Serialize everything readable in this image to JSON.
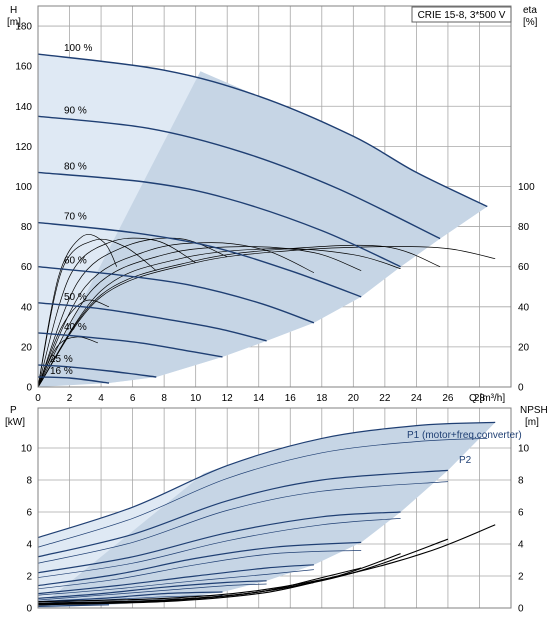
{
  "chart_data": [
    {
      "type": "line",
      "title": "CRIE 15-8, 3*500 V",
      "xlabel": "Q [m³/h]",
      "ylabel": "H [m]",
      "y2label": "eta [%]",
      "ylabel_parts": [
        "H",
        "[m]"
      ],
      "y2label_parts": [
        "eta",
        "[%]"
      ],
      "xlabel_text": "Q [m³/h]",
      "xlim": [
        0,
        30
      ],
      "ylim": [
        0,
        190
      ],
      "y2lim": [
        0,
        190
      ],
      "x_ticks": [
        0,
        2,
        4,
        6,
        8,
        10,
        12,
        14,
        16,
        18,
        20,
        22,
        24,
        26,
        28
      ],
      "y_ticks": [
        0,
        20,
        40,
        60,
        80,
        100,
        120,
        140,
        160,
        180
      ],
      "y2_ticks": [
        0,
        20,
        40,
        60,
        80,
        100
      ],
      "grid": true,
      "legend": "none",
      "head_curves": [
        {
          "label": "100 %",
          "x": [
            0,
            8,
            14,
            20,
            24,
            28.5
          ],
          "y": [
            166,
            158,
            145,
            125,
            107,
            90
          ]
        },
        {
          "label": "90 %",
          "x": [
            0,
            7,
            13,
            19,
            25.5
          ],
          "y": [
            135,
            129,
            117,
            99,
            74
          ]
        },
        {
          "label": "80 %",
          "x": [
            0,
            7,
            12,
            18,
            23
          ],
          "y": [
            107,
            102,
            94,
            78,
            60
          ]
        },
        {
          "label": "70 %",
          "x": [
            0,
            6,
            11,
            16,
            20.5
          ],
          "y": [
            82,
            77,
            70,
            58,
            45
          ]
        },
        {
          "label": "60 %",
          "x": [
            0,
            5,
            9.5,
            14,
            17.5
          ],
          "y": [
            60,
            56,
            51,
            42,
            32
          ]
        },
        {
          "label": "50 %",
          "x": [
            0,
            4,
            8,
            11.5,
            14.5
          ],
          "y": [
            42,
            39,
            34,
            29,
            23
          ]
        },
        {
          "label": "40 %",
          "x": [
            0,
            3,
            6.5,
            9.5,
            11.7
          ],
          "y": [
            27,
            25,
            22,
            18,
            15
          ]
        },
        {
          "label": "25 %",
          "x": [
            0,
            2,
            4.5,
            7.5
          ],
          "y": [
            11,
            10,
            8,
            5
          ]
        },
        {
          "label": "16 %",
          "x": [
            0,
            2,
            4.5
          ],
          "y": [
            5,
            4.5,
            2
          ]
        }
      ],
      "efficiency_curves": [
        {
          "x": [
            0,
            4,
            10,
            16,
            22,
            26,
            29
          ],
          "y": [
            0,
            45,
            62,
            68,
            70,
            69,
            64
          ]
        },
        {
          "x": [
            0,
            4,
            10,
            16,
            22,
            25.5
          ],
          "y": [
            0,
            46,
            63,
            69,
            70,
            60
          ]
        },
        {
          "x": [
            0,
            4,
            9,
            15,
            20,
            23
          ],
          "y": [
            0,
            48,
            64,
            69,
            66,
            59
          ]
        },
        {
          "x": [
            0,
            3.5,
            8,
            13,
            17.5,
            20.5
          ],
          "y": [
            0,
            49,
            66,
            70,
            67,
            58
          ]
        },
        {
          "x": [
            0,
            3,
            7,
            11,
            14.5,
            17.5
          ],
          "y": [
            0,
            50,
            68,
            72,
            68,
            57
          ]
        },
        {
          "x": [
            0,
            2.5,
            5.5,
            9,
            12
          ],
          "y": [
            0,
            52,
            70,
            74,
            65
          ]
        },
        {
          "x": [
            0,
            2,
            4.5,
            7.5,
            10
          ],
          "y": [
            0,
            55,
            72,
            73,
            62
          ]
        },
        {
          "x": [
            0,
            1.5,
            3.5,
            5.5,
            7.5
          ],
          "y": [
            0,
            58,
            73,
            70,
            58
          ]
        },
        {
          "x": [
            0,
            1.3,
            2.8,
            4.2,
            5
          ],
          "y": [
            0,
            55,
            75,
            72,
            60
          ]
        },
        {
          "x": [
            0,
            1.5,
            3,
            4.5
          ],
          "y": [
            0,
            30,
            43,
            40
          ]
        },
        {
          "x": [
            0,
            1.2,
            2.5,
            3.8
          ],
          "y": [
            0,
            20,
            25,
            22
          ]
        }
      ]
    },
    {
      "type": "line",
      "xlabel": "Q [m³/h]",
      "ylabel": "P [kW]",
      "y2label": "NPSH [m]",
      "ylabel_parts": [
        "P",
        "[kW]"
      ],
      "y2label_parts": [
        "NPSH",
        "[m]"
      ],
      "xlim": [
        0,
        30
      ],
      "ylim": [
        0,
        12.5
      ],
      "y2lim": [
        0,
        12.5
      ],
      "y_ticks": [
        0,
        2,
        4,
        6,
        8,
        10
      ],
      "y2_ticks": [
        0,
        2,
        4,
        6,
        8,
        10
      ],
      "grid": true,
      "annotations": [
        "P1 (motor+freq.converter)",
        "P2"
      ],
      "p1_curves": [
        {
          "x": [
            0,
            6,
            12,
            18,
            24,
            29
          ],
          "y": [
            4.4,
            6.3,
            8.9,
            10.6,
            11.4,
            11.6
          ]
        },
        {
          "x": [
            0,
            6,
            12,
            18,
            26
          ],
          "y": [
            3.2,
            4.6,
            6.7,
            8,
            8.6
          ]
        },
        {
          "x": [
            0,
            6,
            12,
            18,
            23
          ],
          "y": [
            2.2,
            3.2,
            4.7,
            5.7,
            6
          ]
        },
        {
          "x": [
            0,
            5,
            10,
            15,
            20.5
          ],
          "y": [
            1.4,
            2.1,
            3.1,
            3.8,
            4.1
          ]
        },
        {
          "x": [
            0,
            5,
            10,
            14.5,
            17.5
          ],
          "y": [
            0.9,
            1.4,
            2,
            2.5,
            2.7
          ]
        },
        {
          "x": [
            0,
            4,
            8,
            12,
            14.5
          ],
          "y": [
            0.6,
            0.9,
            1.3,
            1.6,
            1.7
          ]
        },
        {
          "x": [
            0,
            4,
            8,
            11.7
          ],
          "y": [
            0.4,
            0.6,
            0.9,
            1
          ]
        },
        {
          "x": [
            0,
            3,
            7.5
          ],
          "y": [
            0.2,
            0.3,
            0.4
          ]
        },
        {
          "x": [
            0,
            2,
            4.5
          ],
          "y": [
            0.1,
            0.15,
            0.2
          ]
        }
      ],
      "p2_curves": [
        {
          "x": [
            0,
            6,
            12,
            18,
            24,
            28.5
          ],
          "y": [
            3.8,
            5.6,
            8.1,
            9.7,
            10.4,
            10.6
          ]
        },
        {
          "x": [
            0,
            6,
            12,
            18,
            26
          ],
          "y": [
            2.8,
            4.1,
            6.1,
            7.3,
            7.9
          ]
        },
        {
          "x": [
            0,
            6,
            12,
            18,
            23
          ],
          "y": [
            1.9,
            2.8,
            4.2,
            5.2,
            5.6
          ]
        },
        {
          "x": [
            0,
            5,
            10,
            15,
            20.5
          ],
          "y": [
            1.2,
            1.8,
            2.7,
            3.4,
            3.6
          ]
        },
        {
          "x": [
            0,
            5,
            10,
            14.5,
            17.5
          ],
          "y": [
            0.8,
            1.2,
            1.7,
            2.1,
            2.4
          ]
        },
        {
          "x": [
            0,
            4,
            8,
            12,
            14.5
          ],
          "y": [
            0.5,
            0.8,
            1.1,
            1.4,
            1.5
          ]
        },
        {
          "x": [
            0,
            4,
            8,
            11.7
          ],
          "y": [
            0.3,
            0.5,
            0.7,
            0.8
          ]
        }
      ],
      "npsh_curves": [
        {
          "x": [
            0,
            8,
            14,
            20,
            25,
            29
          ],
          "y": [
            0.4,
            0.6,
            1.1,
            2.2,
            3.6,
            5.2
          ]
        },
        {
          "x": [
            0,
            8,
            14,
            20,
            26
          ],
          "y": [
            0.3,
            0.5,
            1,
            2.2,
            4.3
          ]
        },
        {
          "x": [
            0,
            8,
            14,
            19,
            23
          ],
          "y": [
            0.25,
            0.5,
            1,
            2,
            3.4
          ]
        },
        {
          "x": [
            0,
            8,
            14,
            18,
            20.5
          ],
          "y": [
            0.2,
            0.45,
            1,
            1.9,
            2.5
          ]
        },
        {
          "x": [
            0,
            8,
            14,
            17.5
          ],
          "y": [
            0.2,
            0.4,
            0.9,
            1.6
          ]
        }
      ]
    }
  ]
}
